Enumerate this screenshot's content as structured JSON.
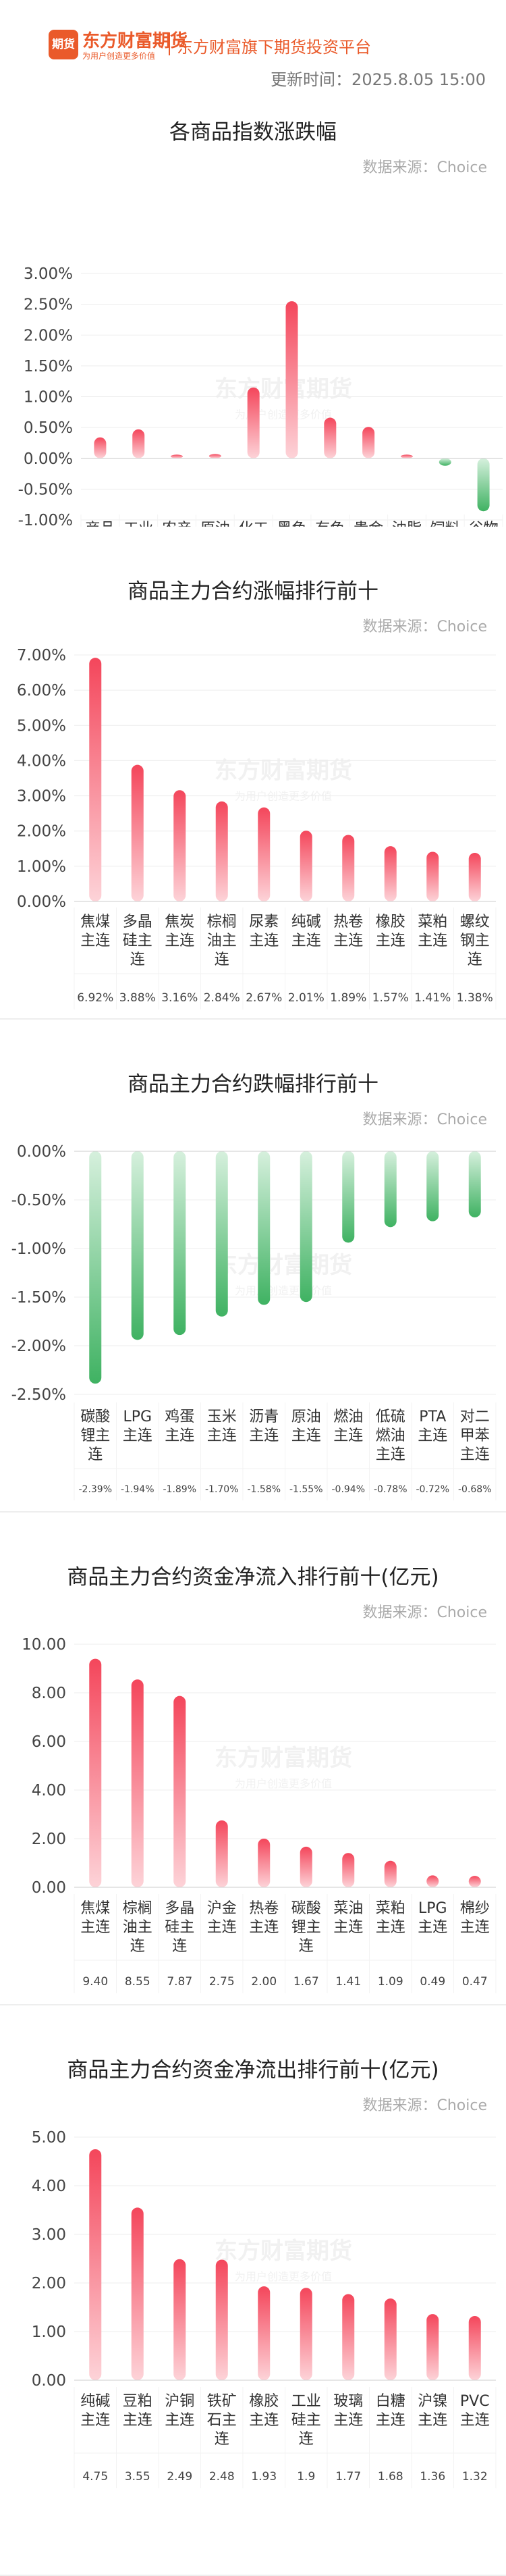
{
  "header": {
    "logo_badge": "期货",
    "logo_name": "东方财富期货",
    "logo_tagline": "为用户创造更多价值",
    "platform": "东方财富旗下期货投资平台",
    "update_time": "更新时间：2025.8.05 15:00"
  },
  "watermark": {
    "name": "东方财富期货",
    "tagline": "为用户创造更多价值"
  },
  "colors": {
    "up": "#f4465b",
    "up_light": "#fdd3d8",
    "down": "#3fb262",
    "down_light": "#d6f0dd",
    "brand": "#ea5a2a"
  },
  "chart_data": [
    {
      "type": "bar",
      "title": "各商品指数涨跌幅",
      "source": "数据来源：Choice",
      "unit": "%",
      "ylim": [
        -1.0,
        3.0
      ],
      "ticks": [
        "3.00%",
        "2.50%",
        "2.00%",
        "1.50%",
        "1.00%",
        "0.50%",
        "0.00%",
        "-0.50%",
        "-1.00%"
      ],
      "tick_values": [
        3.0,
        2.5,
        2.0,
        1.5,
        1.0,
        0.5,
        0.0,
        -0.5,
        -1.0
      ],
      "categories": [
        "商品综合",
        "工业品",
        "农产品",
        "原油",
        "化工",
        "黑色",
        "有色",
        "贵金属",
        "油脂",
        "饲料",
        "谷物"
      ],
      "values": [
        0.34,
        0.47,
        0.06,
        0.07,
        1.15,
        2.55,
        0.66,
        0.51,
        0.06,
        -0.12,
        -0.86
      ],
      "value_labels": [
        "0.34%",
        "0.47%",
        "0.06%",
        "0.07%",
        "1.15%",
        "2.55%",
        "0.66%",
        "0.51%",
        "0.06%",
        "-0.12%",
        "-0.86%"
      ],
      "grid": true
    },
    {
      "type": "bar",
      "title": "商品主力合约涨幅排行前十",
      "source": "数据来源：Choice",
      "unit": "%",
      "ylim": [
        0,
        7.0
      ],
      "ticks": [
        "7.00%",
        "6.00%",
        "5.00%",
        "4.00%",
        "3.00%",
        "2.00%",
        "1.00%",
        "0.00%"
      ],
      "tick_values": [
        7,
        6,
        5,
        4,
        3,
        2,
        1,
        0
      ],
      "categories": [
        "焦煤主连",
        "多晶硅主连",
        "焦炭主连",
        "棕榈油主连",
        "尿素主连",
        "纯碱主连",
        "热卷主连",
        "橡胶主连",
        "菜粕主连",
        "螺纹钢主连"
      ],
      "values": [
        6.92,
        3.88,
        3.16,
        2.84,
        2.67,
        2.01,
        1.89,
        1.57,
        1.41,
        1.38
      ],
      "value_labels": [
        "6.92%",
        "3.88%",
        "3.16%",
        "2.84%",
        "2.67%",
        "2.01%",
        "1.89%",
        "1.57%",
        "1.41%",
        "1.38%"
      ],
      "grid": true
    },
    {
      "type": "bar",
      "title": "商品主力合约跌幅排行前十",
      "source": "数据来源：Choice",
      "unit": "%",
      "ylim": [
        -2.5,
        0
      ],
      "ticks": [
        "0.00%",
        "-0.50%",
        "-1.00%",
        "-1.50%",
        "-2.00%",
        "-2.50%"
      ],
      "tick_values": [
        0,
        -0.5,
        -1.0,
        -1.5,
        -2.0,
        -2.5
      ],
      "categories": [
        "碳酸锂主连",
        "LPG主连",
        "鸡蛋主连",
        "玉米主连",
        "沥青主连",
        "原油主连",
        "燃油主连",
        "低硫燃油主连",
        "PTA主连",
        "对二甲苯主连"
      ],
      "values": [
        -2.39,
        -1.94,
        -1.89,
        -1.7,
        -1.58,
        -1.55,
        -0.94,
        -0.78,
        -0.72,
        -0.68
      ],
      "value_labels": [
        "-2.39%",
        "-1.94%",
        "-1.89%",
        "-1.70%",
        "-1.58%",
        "-1.55%",
        "-0.94%",
        "-0.78%",
        "-0.72%",
        "-0.68%"
      ],
      "grid": true
    },
    {
      "type": "bar",
      "title": "商品主力合约资金净流入排行前十(亿元)",
      "source": "数据来源：Choice",
      "unit": "亿元",
      "ylim": [
        0,
        10
      ],
      "ticks": [
        "10.00",
        "8.00",
        "6.00",
        "4.00",
        "2.00",
        "0.00"
      ],
      "tick_values": [
        10,
        8,
        6,
        4,
        2,
        0
      ],
      "categories": [
        "焦煤主连",
        "棕榈油主连",
        "多晶硅主连",
        "沪金主连",
        "热卷主连",
        "碳酸锂主连",
        "菜油主连",
        "菜粕主连",
        "LPG主连",
        "棉纱主连"
      ],
      "values": [
        9.4,
        8.55,
        7.87,
        2.75,
        2.0,
        1.67,
        1.41,
        1.09,
        0.49,
        0.47
      ],
      "value_labels": [
        "9.40",
        "8.55",
        "7.87",
        "2.75",
        "2.00",
        "1.67",
        "1.41",
        "1.09",
        "0.49",
        "0.47"
      ],
      "grid": true
    },
    {
      "type": "bar",
      "title": "商品主力合约资金净流出排行前十(亿元)",
      "source": "数据来源：Choice",
      "unit": "亿元",
      "ylim": [
        0,
        5
      ],
      "ticks": [
        "5.00",
        "4.00",
        "3.00",
        "2.00",
        "1.00",
        "0.00"
      ],
      "tick_values": [
        5,
        4,
        3,
        2,
        1,
        0
      ],
      "categories": [
        "纯碱主连",
        "豆粕主连",
        "沪铜主连",
        "铁矿石主连",
        "橡胶主连",
        "工业硅主连",
        "玻璃主连",
        "白糖主连",
        "沪镍主连",
        "PVC主连"
      ],
      "values": [
        4.75,
        3.55,
        2.49,
        2.48,
        1.93,
        1.9,
        1.77,
        1.68,
        1.36,
        1.32
      ],
      "value_labels": [
        "4.75",
        "3.55",
        "2.49",
        "2.48",
        "1.93",
        "1.9",
        "1.77",
        "1.68",
        "1.36",
        "1.32"
      ],
      "grid": true
    }
  ]
}
